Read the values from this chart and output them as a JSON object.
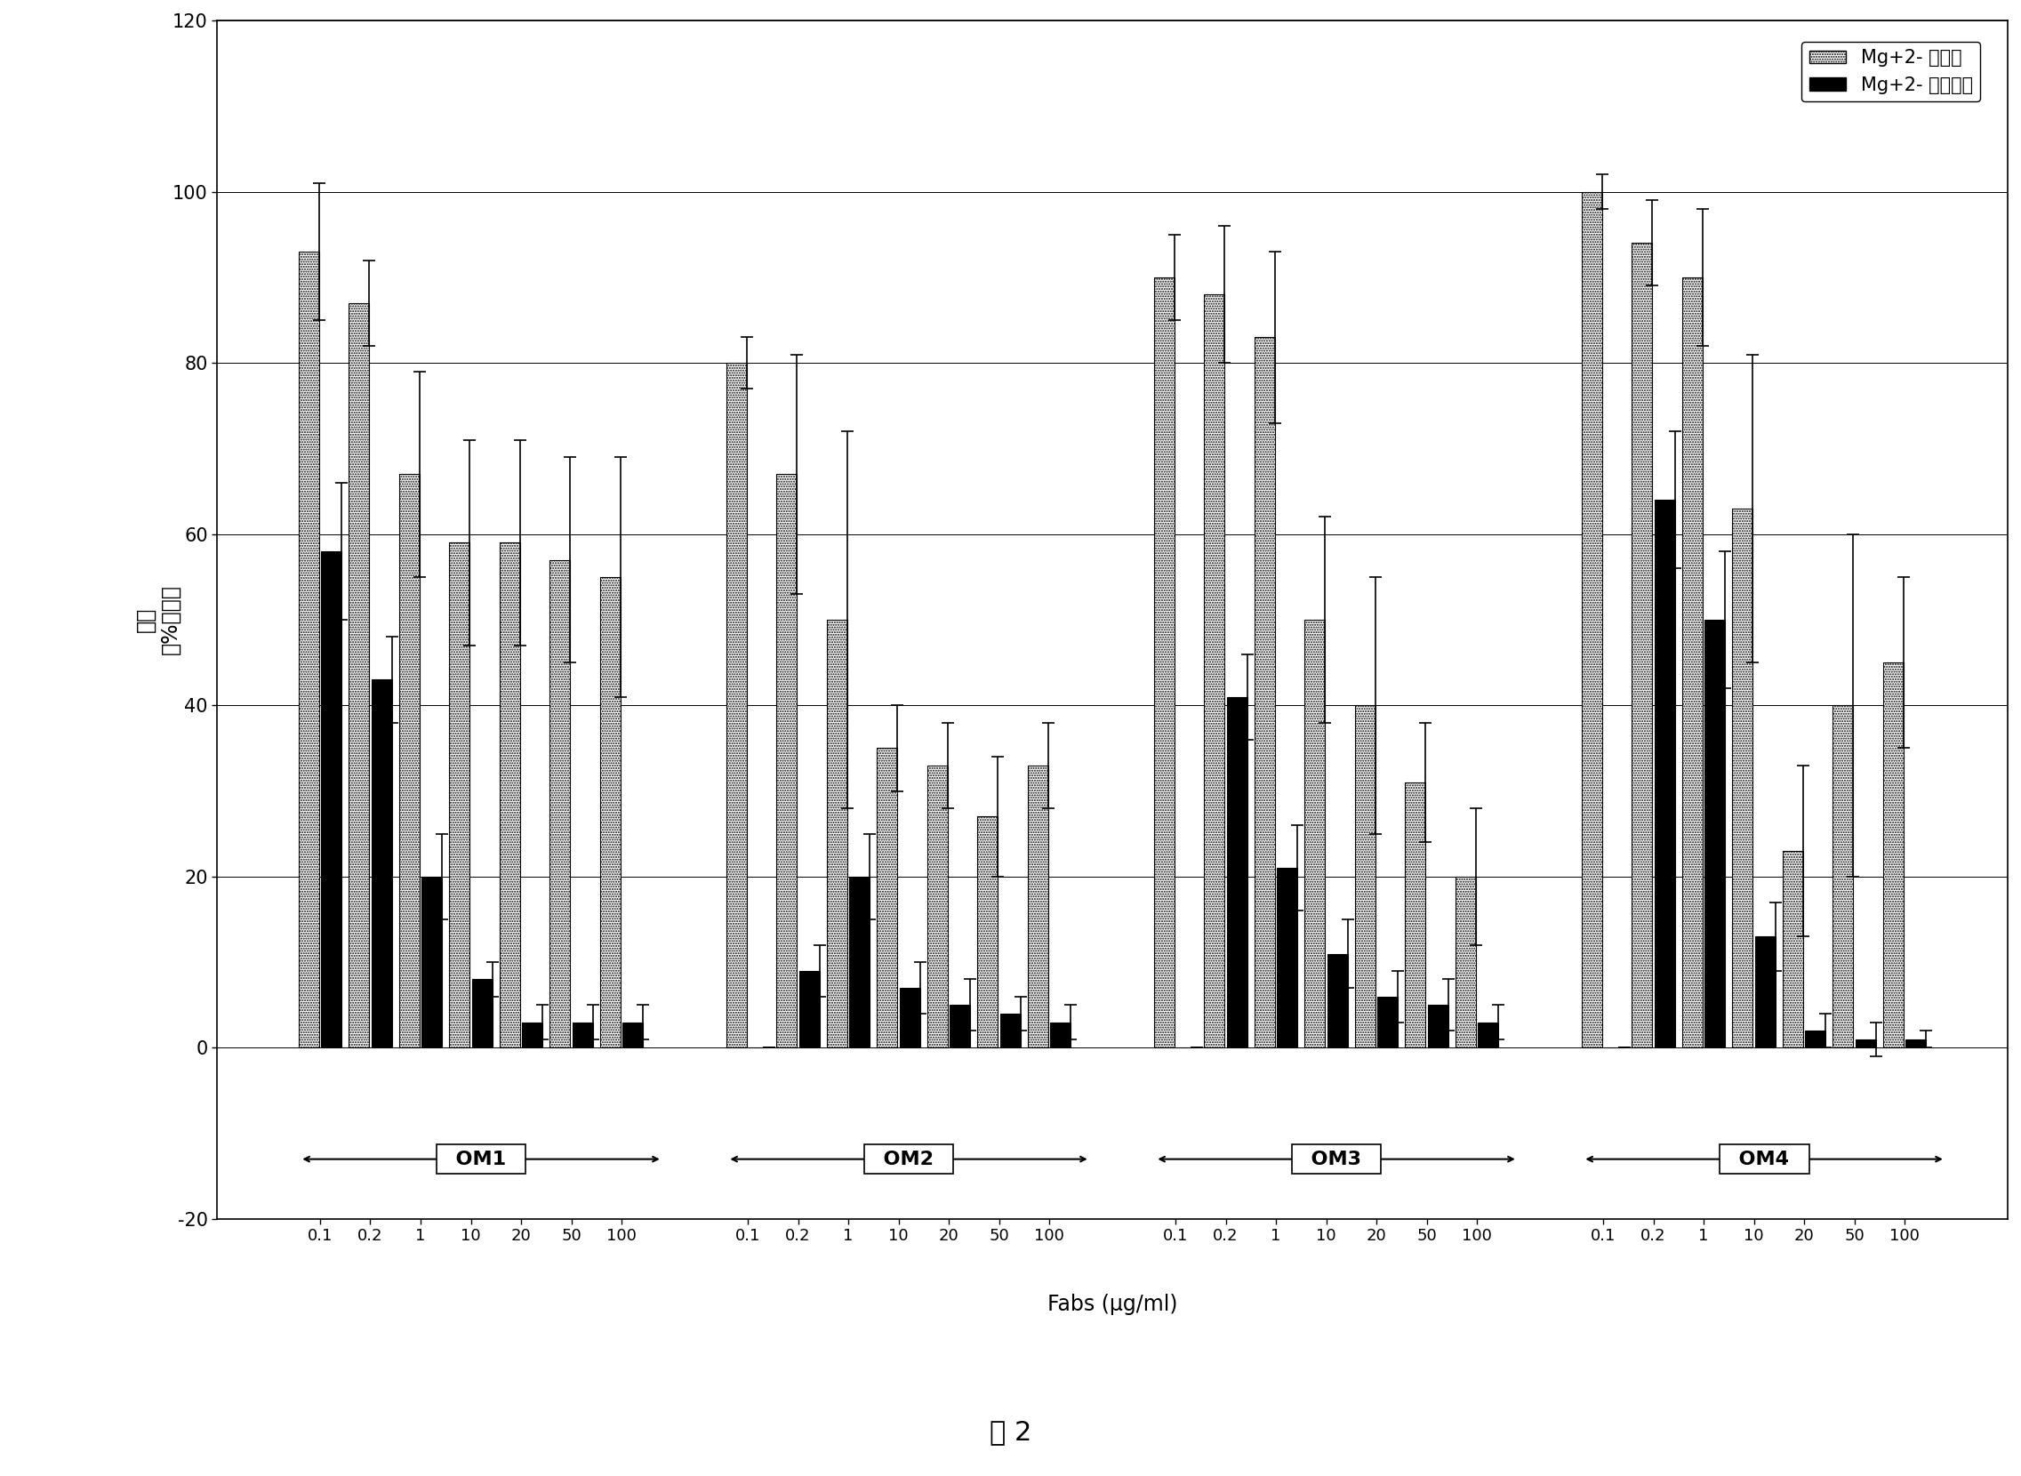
{
  "groups": [
    "OM1",
    "OM2",
    "OM3",
    "OM4"
  ],
  "concentrations": [
    "0.1",
    "0.2",
    "1",
    "10",
    "20",
    "50",
    "100"
  ],
  "light_values": {
    "OM1": [
      93,
      87,
      67,
      59,
      59,
      57,
      55
    ],
    "OM2": [
      80,
      67,
      50,
      35,
      33,
      27,
      33
    ],
    "OM3": [
      90,
      88,
      83,
      50,
      40,
      31,
      20
    ],
    "OM4": [
      100,
      94,
      90,
      63,
      23,
      40,
      45
    ]
  },
  "dark_values": {
    "OM1": [
      58,
      43,
      20,
      8,
      3,
      3,
      3
    ],
    "OM2": [
      0,
      9,
      20,
      7,
      5,
      4,
      3
    ],
    "OM3": [
      0,
      41,
      21,
      11,
      6,
      5,
      3
    ],
    "OM4": [
      0,
      64,
      50,
      13,
      2,
      1,
      1
    ]
  },
  "light_errors": {
    "OM1": [
      8,
      5,
      12,
      12,
      12,
      12,
      14
    ],
    "OM2": [
      3,
      14,
      22,
      5,
      5,
      7,
      5
    ],
    "OM3": [
      5,
      8,
      10,
      12,
      15,
      7,
      8
    ],
    "OM4": [
      2,
      5,
      8,
      18,
      10,
      20,
      10
    ]
  },
  "dark_errors": {
    "OM1": [
      8,
      5,
      5,
      2,
      2,
      2,
      2
    ],
    "OM2": [
      0,
      3,
      5,
      3,
      3,
      2,
      2
    ],
    "OM3": [
      0,
      5,
      5,
      4,
      3,
      3,
      2
    ],
    "OM4": [
      0,
      8,
      8,
      4,
      2,
      2,
      1
    ]
  },
  "light_color": "#d8d8d8",
  "dark_color": "#000000",
  "ylabel": "粘着\n（%对照）",
  "xlabel": "Fabs (μg/ml)",
  "ylim_min": -20,
  "ylim_max": 120,
  "yticks": [
    -20,
    0,
    20,
    40,
    60,
    80,
    100,
    120
  ],
  "legend_light": "Mg+2- 依赖性",
  "legend_dark": "Mg+2- 非依赖性",
  "figure_label": "图 2",
  "background_color": "#ffffff"
}
